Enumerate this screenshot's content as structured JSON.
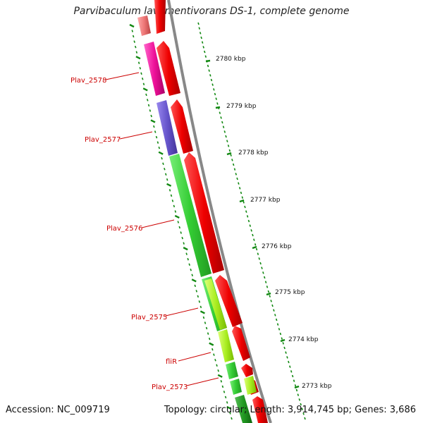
{
  "title": "Parvibaculum lavamentivorans DS-1, complete genome",
  "footer": {
    "accession": "Accession: NC_009719",
    "summary": "Topology: circular; Length: 3,914,745 bp; Genes: 3,686"
  },
  "ruler": {
    "ticks": [
      "2780 kbp",
      "2779 kbp",
      "2778 kbp",
      "2777 kbp",
      "2776 kbp",
      "2775 kbp",
      "2774 kbp",
      "2773 kbp"
    ]
  },
  "gene_labels": [
    "Plav_2578",
    "Plav_2577",
    "Plav_2576",
    "Plav_2575",
    "fliR",
    "Plav_2573"
  ],
  "colors": {
    "forward_strand": "#ee0000",
    "backbone": "#888888",
    "tick": "#118811",
    "label": "#cc0000",
    "cog_pink": "#ee1199",
    "cog_salmon": "#ee7777",
    "cog_purple": "#6655cc",
    "cog_green": "#33cc33",
    "cog_yellowgreen": "#aaee22",
    "cog_darkgreen": "#229922"
  }
}
